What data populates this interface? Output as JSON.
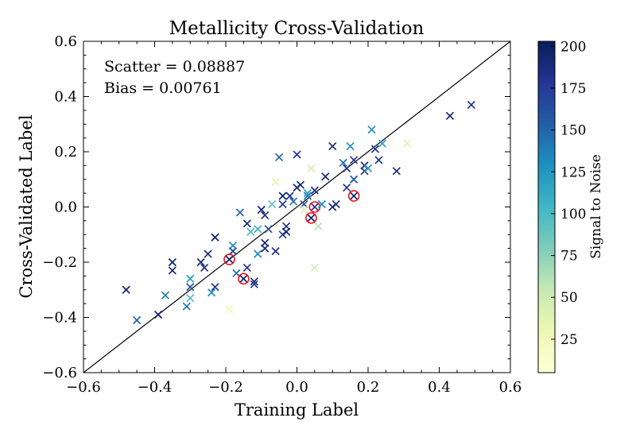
{
  "chart_data": {
    "type": "scatter",
    "title": "Metallicity Cross-Validation",
    "xlabel": "Training Label",
    "ylabel": "Cross-Validated Label",
    "xlim": [
      -0.6,
      0.6
    ],
    "ylim": [
      -0.6,
      0.6
    ],
    "x_ticks": [
      -0.6,
      -0.4,
      -0.2,
      0.0,
      0.2,
      0.4,
      0.6
    ],
    "y_ticks": [
      -0.6,
      -0.4,
      -0.2,
      0.0,
      0.2,
      0.4,
      0.6
    ],
    "x_tick_labels": [
      "−0.6",
      "−0.4",
      "−0.2",
      "0.0",
      "0.2",
      "0.4",
      "0.6"
    ],
    "y_tick_labels": [
      "−0.6",
      "−0.4",
      "−0.2",
      "0.0",
      "0.2",
      "0.4",
      "0.6"
    ],
    "grid": false,
    "identity_line": true,
    "annotations": [
      "Scatter = 0.08887",
      "Bias = 0.00761"
    ],
    "colorbar": {
      "label": "Signal to Noise",
      "range": [
        5,
        203
      ],
      "ticks": [
        25,
        50,
        75,
        100,
        125,
        150,
        175,
        200
      ],
      "tick_labels": [
        "25",
        "50",
        "75",
        "100",
        "125",
        "150",
        "175",
        "200"
      ],
      "colormap": [
        "#ffffd9",
        "#edf8b1",
        "#c7e9b4",
        "#7fcdbb",
        "#41b6c4",
        "#1d91c0",
        "#225ea8",
        "#253494",
        "#081d58"
      ]
    },
    "points": [
      {
        "x": -0.48,
        "y": -0.3,
        "snr": 195
      },
      {
        "x": -0.45,
        "y": -0.41,
        "snr": 150
      },
      {
        "x": -0.39,
        "y": -0.39,
        "snr": 198
      },
      {
        "x": -0.37,
        "y": -0.32,
        "snr": 140
      },
      {
        "x": -0.35,
        "y": -0.2,
        "snr": 195
      },
      {
        "x": -0.35,
        "y": -0.23,
        "snr": 192
      },
      {
        "x": -0.31,
        "y": -0.36,
        "snr": 140
      },
      {
        "x": -0.3,
        "y": -0.26,
        "snr": 120
      },
      {
        "x": -0.3,
        "y": -0.29,
        "snr": 160
      },
      {
        "x": -0.3,
        "y": -0.33,
        "snr": 100
      },
      {
        "x": -0.27,
        "y": -0.2,
        "snr": 192
      },
      {
        "x": -0.26,
        "y": -0.22,
        "snr": 185
      },
      {
        "x": -0.25,
        "y": -0.17,
        "snr": 190
      },
      {
        "x": -0.24,
        "y": -0.31,
        "snr": 130
      },
      {
        "x": -0.23,
        "y": -0.29,
        "snr": 175
      },
      {
        "x": -0.23,
        "y": -0.11,
        "snr": 198
      },
      {
        "x": -0.19,
        "y": -0.19,
        "snr": 195,
        "flagged": true
      },
      {
        "x": -0.18,
        "y": -0.16,
        "snr": 175
      },
      {
        "x": -0.18,
        "y": -0.14,
        "snr": 130
      },
      {
        "x": -0.19,
        "y": -0.37,
        "snr": 25
      },
      {
        "x": -0.17,
        "y": -0.24,
        "snr": 145
      },
      {
        "x": -0.16,
        "y": -0.02,
        "snr": 150
      },
      {
        "x": -0.15,
        "y": -0.26,
        "snr": 195,
        "flagged": true
      },
      {
        "x": -0.14,
        "y": -0.22,
        "snr": 180
      },
      {
        "x": -0.14,
        "y": -0.06,
        "snr": 185
      },
      {
        "x": -0.13,
        "y": -0.09,
        "snr": 100
      },
      {
        "x": -0.12,
        "y": -0.27,
        "snr": 192
      },
      {
        "x": -0.12,
        "y": -0.28,
        "snr": 180
      },
      {
        "x": -0.11,
        "y": -0.17,
        "snr": 135
      },
      {
        "x": -0.11,
        "y": -0.08,
        "snr": 110
      },
      {
        "x": -0.1,
        "y": -0.01,
        "snr": 195
      },
      {
        "x": -0.09,
        "y": -0.13,
        "snr": 195
      },
      {
        "x": -0.09,
        "y": -0.15,
        "snr": 190
      },
      {
        "x": -0.09,
        "y": -0.03,
        "snr": 185
      },
      {
        "x": -0.08,
        "y": -0.08,
        "snr": 170
      },
      {
        "x": -0.07,
        "y": 0.01,
        "snr": 90
      },
      {
        "x": -0.06,
        "y": 0.09,
        "snr": 35
      },
      {
        "x": -0.06,
        "y": -0.16,
        "snr": 185
      },
      {
        "x": -0.05,
        "y": 0.18,
        "snr": 150
      },
      {
        "x": -0.04,
        "y": 0.04,
        "snr": 195
      },
      {
        "x": -0.04,
        "y": -0.1,
        "snr": 165
      },
      {
        "x": -0.04,
        "y": 0.01,
        "snr": 175
      },
      {
        "x": -0.03,
        "y": -0.07,
        "snr": 180
      },
      {
        "x": -0.03,
        "y": -0.09,
        "snr": 195
      },
      {
        "x": -0.02,
        "y": 0.04,
        "snr": 185
      },
      {
        "x": -0.01,
        "y": 0.02,
        "snr": 145
      },
      {
        "x": 0.0,
        "y": 0.19,
        "snr": 178
      },
      {
        "x": 0.0,
        "y": 0.07,
        "snr": 195
      },
      {
        "x": 0.01,
        "y": 0.08,
        "snr": 190
      },
      {
        "x": 0.02,
        "y": 0.01,
        "snr": 160
      },
      {
        "x": 0.02,
        "y": -0.01,
        "snr": 40
      },
      {
        "x": 0.03,
        "y": 0.04,
        "snr": 150
      },
      {
        "x": 0.03,
        "y": 0.05,
        "snr": 120
      },
      {
        "x": 0.04,
        "y": 0.14,
        "snr": 45
      },
      {
        "x": 0.04,
        "y": -0.04,
        "snr": 195,
        "flagged": true
      },
      {
        "x": 0.05,
        "y": 0.06,
        "snr": 185
      },
      {
        "x": 0.05,
        "y": -0.22,
        "snr": 45
      },
      {
        "x": 0.05,
        "y": 0.0,
        "snr": 178,
        "flagged": true
      },
      {
        "x": 0.06,
        "y": -0.07,
        "snr": 60
      },
      {
        "x": 0.07,
        "y": 0.01,
        "snr": 130
      },
      {
        "x": 0.08,
        "y": 0.11,
        "snr": 190
      },
      {
        "x": 0.1,
        "y": 0.22,
        "snr": 192
      },
      {
        "x": 0.1,
        "y": 0.0,
        "snr": 190
      },
      {
        "x": 0.11,
        "y": 0.01,
        "snr": 185
      },
      {
        "x": 0.13,
        "y": 0.16,
        "snr": 145
      },
      {
        "x": 0.14,
        "y": 0.14,
        "snr": 185
      },
      {
        "x": 0.14,
        "y": 0.07,
        "snr": 180
      },
      {
        "x": 0.15,
        "y": 0.22,
        "snr": 130
      },
      {
        "x": 0.16,
        "y": 0.04,
        "snr": 195,
        "flagged": true
      },
      {
        "x": 0.16,
        "y": 0.17,
        "snr": 180
      },
      {
        "x": 0.16,
        "y": 0.1,
        "snr": 160
      },
      {
        "x": 0.19,
        "y": 0.15,
        "snr": 190
      },
      {
        "x": 0.19,
        "y": 0.13,
        "snr": 185
      },
      {
        "x": 0.2,
        "y": 0.14,
        "snr": 120
      },
      {
        "x": 0.21,
        "y": 0.28,
        "snr": 130
      },
      {
        "x": 0.22,
        "y": 0.21,
        "snr": 180
      },
      {
        "x": 0.23,
        "y": 0.17,
        "snr": 185
      },
      {
        "x": 0.24,
        "y": 0.23,
        "snr": 120
      },
      {
        "x": 0.28,
        "y": 0.13,
        "snr": 190
      },
      {
        "x": 0.31,
        "y": 0.23,
        "snr": 40
      },
      {
        "x": 0.43,
        "y": 0.33,
        "snr": 195
      },
      {
        "x": 0.49,
        "y": 0.37,
        "snr": 180
      }
    ]
  }
}
